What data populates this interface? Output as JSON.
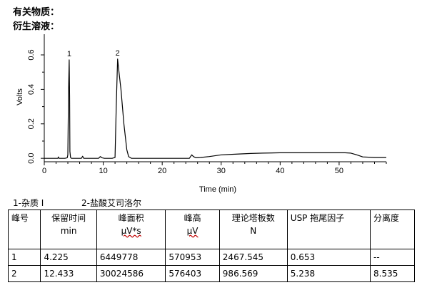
{
  "headings": [
    "有关物质：",
    "衍生溶液："
  ],
  "chart_data": {
    "type": "line",
    "title": "",
    "xlabel": "Time (min)",
    "ylabel": "Volts",
    "xlim": [
      0,
      58
    ],
    "ylim": [
      -0.02,
      0.72
    ],
    "xticks": [
      0,
      10,
      20,
      30,
      40,
      50
    ],
    "yticks": [
      0.0,
      0.2,
      0.4,
      0.6
    ],
    "ytick_labels": [
      "0.0",
      "0.2",
      "0.4",
      "0.6"
    ],
    "grid": false,
    "peak_labels": [
      {
        "label": "1",
        "x": 4.225
      },
      {
        "label": "2",
        "x": 12.433
      }
    ],
    "series": [
      {
        "x": [
          0,
          2.3,
          2.4,
          2.5,
          3.0,
          3.5,
          3.9,
          4.0,
          4.1,
          4.15,
          4.225,
          4.3,
          4.35,
          4.45,
          4.6,
          5.0,
          6.3,
          6.5,
          6.7,
          7.0,
          9.2,
          9.5,
          9.8,
          10.2,
          11.5,
          12.0,
          12.2,
          12.433,
          12.6,
          13.0,
          13.5,
          14.0,
          14.3,
          14.8,
          16,
          20,
          24.6,
          25.0,
          25.3,
          25.7,
          26.5,
          28,
          30,
          33,
          35,
          37,
          40,
          45,
          50,
          51,
          52,
          53,
          54,
          56,
          58
        ],
        "y": [
          0.0,
          0.0,
          0.008,
          0.0,
          0.0,
          0.0,
          0.003,
          0.02,
          0.35,
          0.45,
          0.571,
          0.35,
          0.04,
          0.005,
          0.0,
          0.0,
          0.0,
          0.012,
          0.0,
          0.0,
          0.0,
          0.01,
          0.003,
          0.0,
          0.0,
          0.005,
          0.3,
          0.576,
          0.52,
          0.4,
          0.2,
          0.05,
          0.01,
          0.0,
          0.0,
          0.0,
          0.0,
          0.02,
          0.01,
          0.003,
          0.005,
          0.01,
          0.02,
          0.025,
          0.028,
          0.03,
          0.032,
          0.032,
          0.032,
          0.032,
          0.03,
          0.02,
          0.008,
          0.005,
          0.005
        ]
      }
    ]
  },
  "legend": [
    "1-杂质 I",
    "2-盐酸艾司洛尔"
  ],
  "table": {
    "headers": [
      {
        "main": "峰号",
        "unit": ""
      },
      {
        "main": "保留时间",
        "unit": "min"
      },
      {
        "main": "峰面积",
        "unit": "μV*s"
      },
      {
        "main": "峰高",
        "unit": "μV"
      },
      {
        "main": "理论塔板数",
        "unit": "N"
      },
      {
        "main": "USP 拖尾因子",
        "unit": ""
      },
      {
        "main": "分离度",
        "unit": ""
      }
    ],
    "rows": [
      [
        "1",
        "4.225",
        "6449778",
        "570953",
        "2467.545",
        "0.653",
        "--"
      ],
      [
        "2",
        "12.433",
        "30024586",
        "576403",
        "986.569",
        "5.238",
        "8.535"
      ]
    ]
  }
}
